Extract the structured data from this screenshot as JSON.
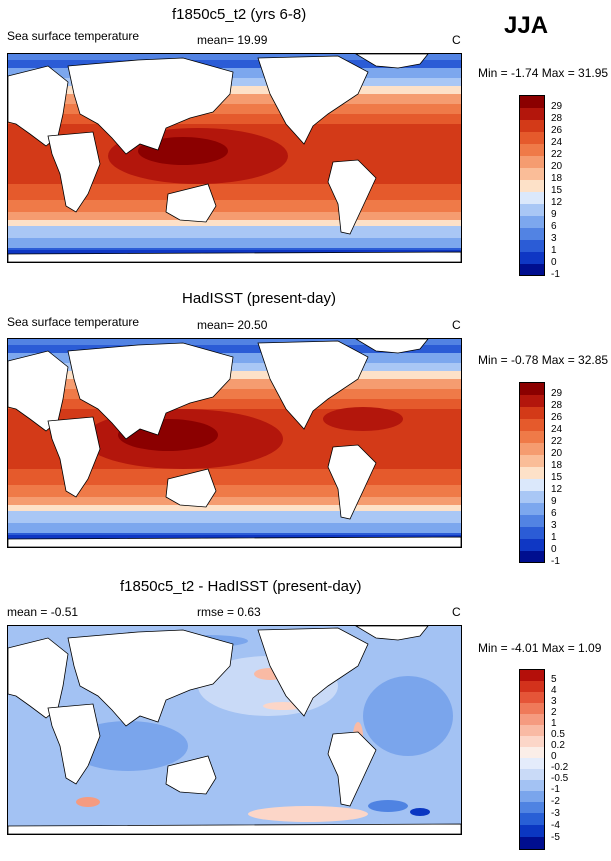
{
  "season": "JJA",
  "panels": [
    {
      "title": "f1850c5_t2 (yrs 6-8)",
      "left_label": "Sea surface temperature",
      "center_label": "mean=  19.99",
      "units": "C",
      "minmax": "Min =  -1.74 Max =  31.95",
      "colorbar_labels": [
        "29",
        "28",
        "26",
        "24",
        "22",
        "20",
        "18",
        "15",
        "12",
        "9",
        "6",
        "3",
        "1",
        "0",
        "-1"
      ],
      "colors": [
        "#8b0000",
        "#b3160c",
        "#d33a18",
        "#e55a2c",
        "#ef7a48",
        "#f59c70",
        "#fabd98",
        "#fde1c8",
        "#dbe8fb",
        "#a9c7f5",
        "#7ca7ee",
        "#5283e3",
        "#2b5cd6",
        "#0f37c4",
        "#000e8f"
      ]
    },
    {
      "title": "HadISST (present-day)",
      "left_label": "Sea surface temperature",
      "center_label": "mean=  20.50",
      "units": "C",
      "minmax": "Min =  -0.78 Max =  32.85",
      "colorbar_labels": [
        "29",
        "28",
        "26",
        "24",
        "22",
        "20",
        "18",
        "15",
        "12",
        "9",
        "6",
        "3",
        "1",
        "0",
        "-1"
      ],
      "colors": [
        "#8b0000",
        "#b3160c",
        "#d33a18",
        "#e55a2c",
        "#ef7a48",
        "#f59c70",
        "#fabd98",
        "#fde1c8",
        "#dbe8fb",
        "#a9c7f5",
        "#7ca7ee",
        "#5283e3",
        "#2b5cd6",
        "#0f37c4",
        "#000e8f"
      ]
    },
    {
      "title": "f1850c5_t2 - HadISST (present-day)",
      "left_label": "mean =  -0.51",
      "center_label": "rmse =   0.63",
      "units": "C",
      "minmax": "Min =  -4.01 Max =   1.09",
      "colorbar_labels": [
        "5",
        "4",
        "3",
        "2",
        "1",
        "0.5",
        "0.2",
        "0",
        "-0.2",
        "-0.5",
        "-1",
        "-2",
        "-3",
        "-4",
        "-5"
      ],
      "colors": [
        "#b40f0a",
        "#d3321c",
        "#e55538",
        "#ef7a5a",
        "#f59b80",
        "#f9baa4",
        "#fcd6c8",
        "#fbeee8",
        "#e4ecfb",
        "#c9daf7",
        "#a3c2f3",
        "#7aa5ec",
        "#4f83e2",
        "#285fd6",
        "#0b37c2",
        "#000e8f"
      ]
    }
  ]
}
